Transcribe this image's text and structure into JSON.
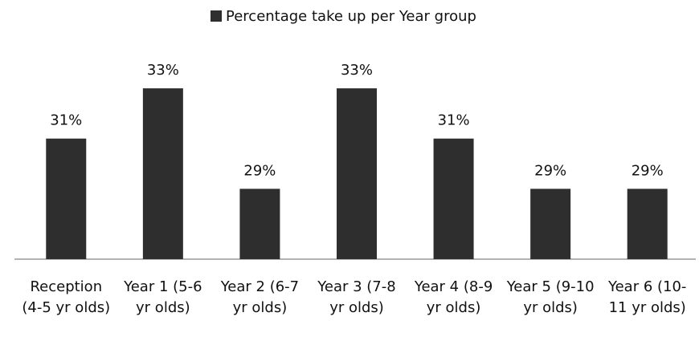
{
  "chart_data": {
    "type": "bar",
    "categories": [
      "Reception (4-5 yr olds)",
      "Year 1 (5-6 yr olds)",
      "Year 2 (6-7 yr olds)",
      "Year 3 (7-8 yr olds)",
      "Year 4 (8-9 yr olds)",
      "Year 5 (9-10 yr olds)",
      "Year 6 (10-11 yr olds)"
    ],
    "series": [
      {
        "name": "Percentage take up per Year group",
        "color": "#2e2e2e",
        "values": [
          31,
          33,
          29,
          33,
          31,
          29,
          29
        ],
        "value_labels": [
          "31%",
          "33%",
          "29%",
          "33%",
          "31%",
          "29%",
          "29%"
        ]
      }
    ],
    "ylim": [
      26.2,
      34.6
    ],
    "legend": "top"
  }
}
